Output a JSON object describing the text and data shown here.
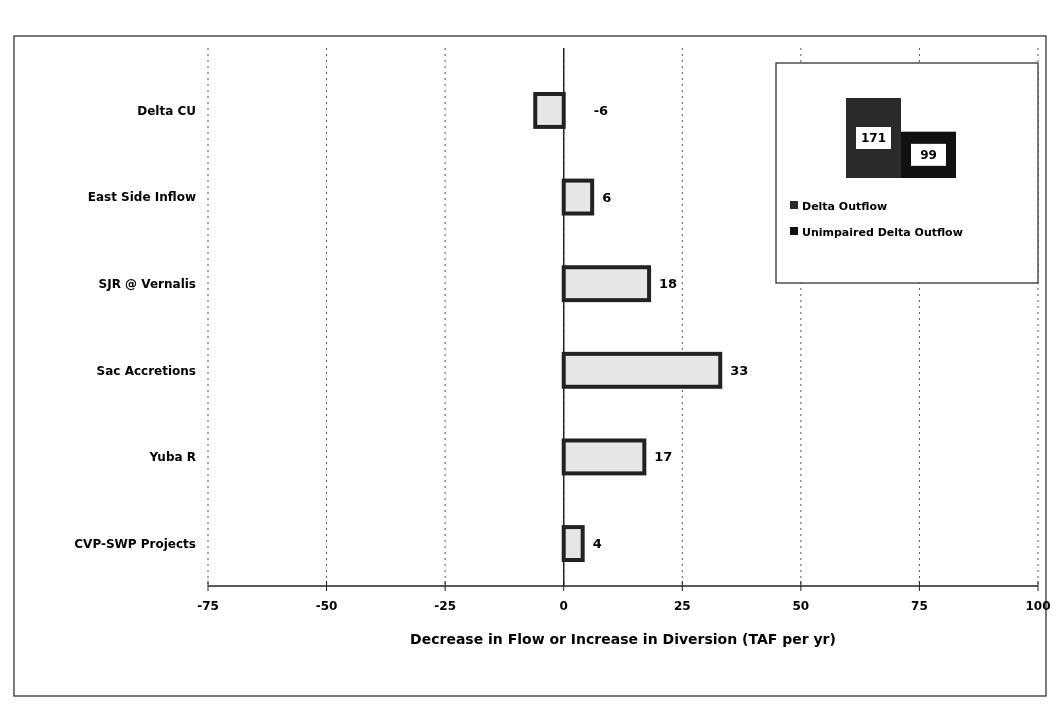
{
  "chart_data": [
    {
      "type": "bar",
      "orientation": "horizontal",
      "xlabel": "Decrease in Flow or Increase in Diversion (TAF per yr)",
      "categories": [
        "Delta CU",
        "East Side  Inflow",
        "SJR @ Vernalis",
        "Sac Accretions",
        "Yuba R",
        "CVP-SWP Projects"
      ],
      "values": [
        -6,
        6,
        18,
        33,
        17,
        4
      ],
      "color": "#e6e6e6",
      "xlim": [
        -75,
        100
      ],
      "xticks": [
        -75,
        -50,
        -25,
        0,
        25,
        50,
        75,
        100
      ],
      "grid": "x",
      "data_labels": true
    },
    {
      "type": "bar",
      "categories": [
        null
      ],
      "series": [
        {
          "name": "Delta Outflow",
          "color": "#2a2a2a",
          "values": [
            171
          ]
        },
        {
          "name": "Unimpaired Delta Outflow",
          "color": "#111111",
          "values": [
            99
          ]
        }
      ],
      "data_labels": true,
      "legend": "bottom"
    }
  ]
}
